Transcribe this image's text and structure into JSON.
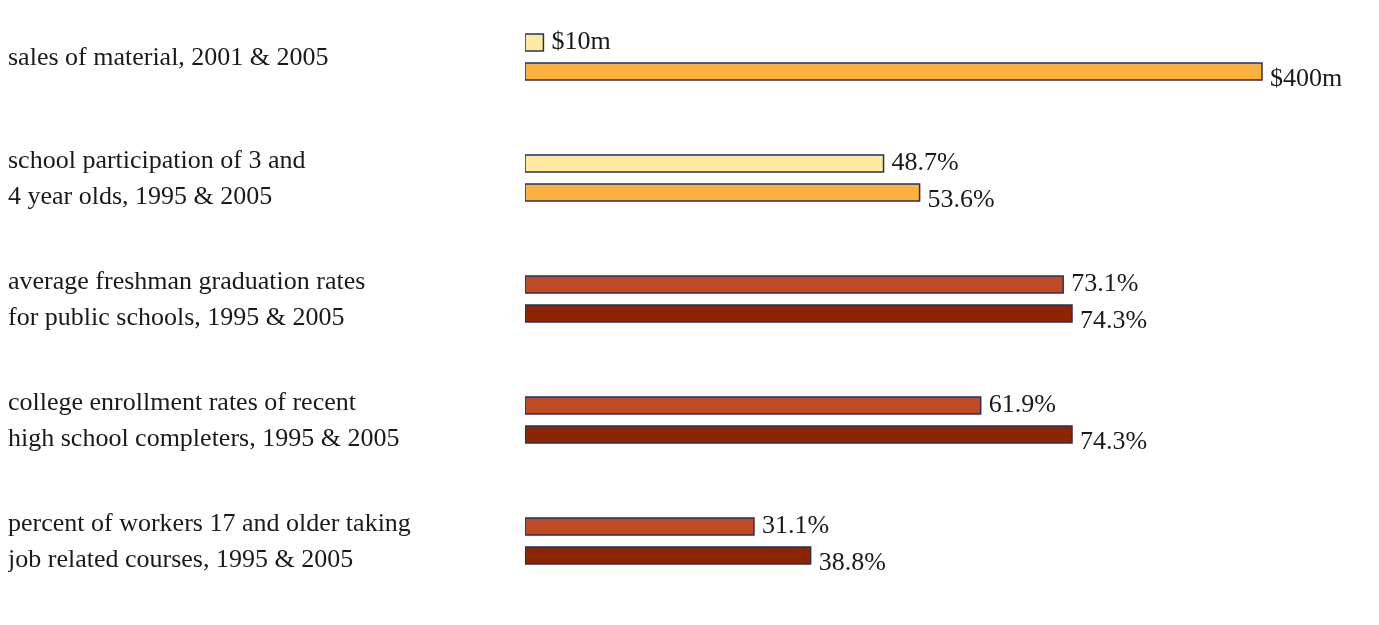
{
  "chart_data": [
    {
      "type": "bar",
      "orientation": "horizontal",
      "categories": [
        "sales of material, 2001 & 2005"
      ],
      "series": [
        {
          "color": "#fdeaa0",
          "values": [
            10
          ],
          "value_labels": [
            "$10m"
          ]
        },
        {
          "color": "#fbb040",
          "values": [
            400
          ],
          "value_labels": [
            "$400m"
          ]
        }
      ]
    },
    {
      "type": "bar",
      "orientation": "horizontal",
      "categories": [
        "school participation of 3 and\n4 year olds, 1995 & 2005",
        "average freshman graduation rates\nfor public schools, 1995 & 2005",
        "college enrollment rates of recent\nhigh school completers, 1995 & 2005",
        "percent of workers 17 and older taking\njob related courses, 1995 & 2005"
      ],
      "series": [
        {
          "colors": [
            "#fdeaa0",
            "#bf4b25",
            "#bf4b25",
            "#bf4b25"
          ],
          "values": [
            48.7,
            73.1,
            61.9,
            31.1
          ],
          "value_labels": [
            "48.7%",
            "73.1%",
            "61.9%",
            "31.1%"
          ]
        },
        {
          "colors": [
            "#fbb040",
            "#8c2600",
            "#8c2600",
            "#8c2600"
          ],
          "values": [
            53.6,
            74.3,
            74.3,
            38.8
          ],
          "value_labels": [
            "53.6%",
            "74.3%",
            "74.3%",
            "38.8%"
          ]
        }
      ]
    }
  ]
}
